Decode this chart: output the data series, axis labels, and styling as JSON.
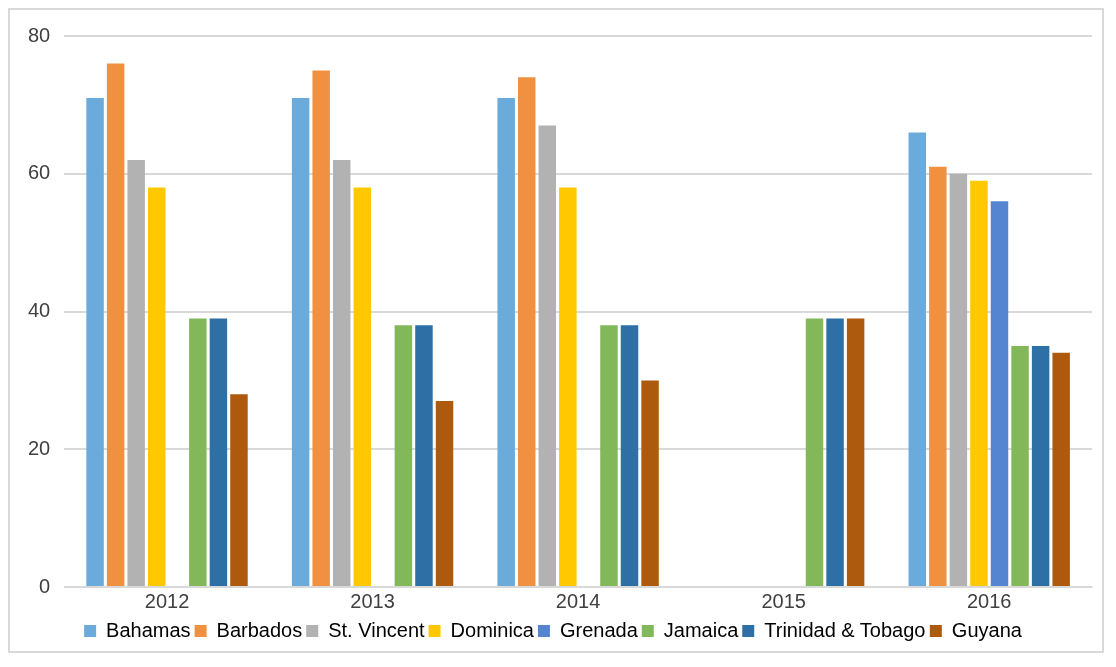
{
  "chart_data": {
    "type": "bar",
    "categories": [
      "2012",
      "2013",
      "2014",
      "2015",
      "2016"
    ],
    "series": [
      {
        "name": "Bahamas",
        "color": "#6aabdc",
        "values": [
          71,
          71,
          71,
          null,
          66
        ]
      },
      {
        "name": "Barbados",
        "color": "#f09141",
        "values": [
          76,
          75,
          74,
          null,
          61
        ]
      },
      {
        "name": "St. Vincent",
        "color": "#b2b2b2",
        "values": [
          62,
          62,
          67,
          null,
          60
        ]
      },
      {
        "name": "Dominica",
        "color": "#ffc800",
        "values": [
          58,
          58,
          58,
          null,
          59
        ]
      },
      {
        "name": "Grenada",
        "color": "#5585d1",
        "values": [
          null,
          null,
          null,
          null,
          56
        ]
      },
      {
        "name": "Jamaica",
        "color": "#82b85a",
        "values": [
          39,
          38,
          38,
          39,
          35
        ]
      },
      {
        "name": "Trinidad & Tobago",
        "color": "#2e70a5",
        "values": [
          39,
          38,
          38,
          39,
          35
        ]
      },
      {
        "name": "Guyana",
        "color": "#ad5a0e",
        "values": [
          28,
          27,
          30,
          39,
          34
        ]
      }
    ],
    "ylim": [
      0,
      80
    ],
    "yticks": [
      0,
      20,
      40,
      60,
      80
    ],
    "grid": "y",
    "legend": "bottom"
  }
}
